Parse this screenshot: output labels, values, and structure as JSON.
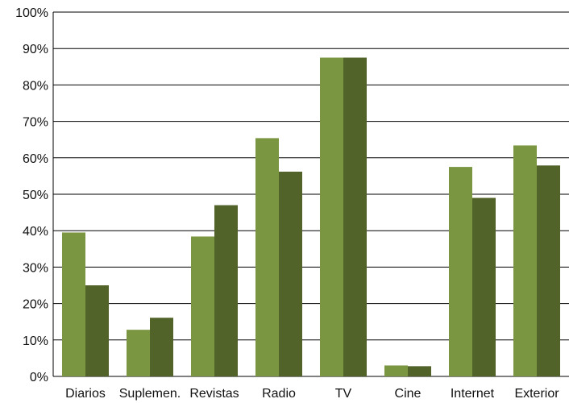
{
  "chart_data": {
    "type": "bar",
    "categories": [
      "Diarios",
      "Suplemen.",
      "Revistas",
      "Radio",
      "TV",
      "Cine",
      "Internet",
      "Exterior"
    ],
    "series": [
      {
        "values": [
          39.5,
          12.8,
          38.4,
          65.4,
          87.5,
          3.0,
          57.5,
          63.4
        ],
        "color": "#7a9641"
      },
      {
        "values": [
          25.0,
          16.1,
          47.0,
          56.2,
          87.5,
          2.8,
          49.0,
          57.9
        ],
        "color": "#52632a"
      }
    ],
    "y_ticks": [
      "0%",
      "10%",
      "20%",
      "30%",
      "40%",
      "50%",
      "60%",
      "70%",
      "80%",
      "90%",
      "100%"
    ],
    "ylim": [
      0,
      100
    ],
    "grid": true,
    "legend": "none",
    "title": "",
    "xlabel": "",
    "ylabel": ""
  }
}
